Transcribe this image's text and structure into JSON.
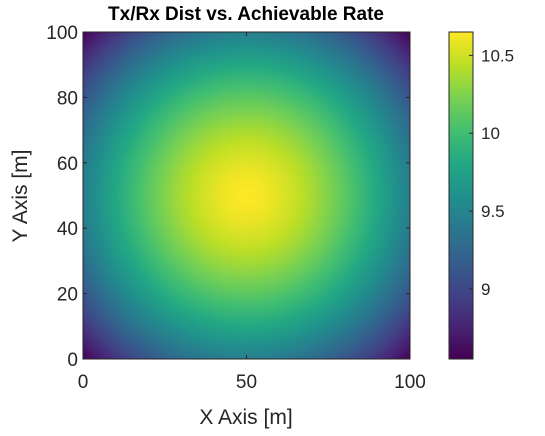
{
  "chart_data": {
    "type": "heatmap",
    "title": "Tx/Rx Dist vs. Achievable Rate",
    "xlabel": "X Axis [m]",
    "ylabel": "Y Axis [m]",
    "xlim": [
      0,
      100
    ],
    "ylim": [
      0,
      100
    ],
    "x_ticks": [
      "0",
      "50",
      "100"
    ],
    "y_ticks": [
      "0",
      "20",
      "40",
      "60",
      "80",
      "100"
    ],
    "colormap": "viridis",
    "value_model": "radially symmetric, maximum at the centre (50, 50), decreasing toward the corners",
    "center": [
      50,
      50
    ],
    "max_value": 10.65,
    "min_value": 8.55,
    "grid": false,
    "colorbar": {
      "range": [
        8.55,
        10.65
      ],
      "ticks": [
        "9",
        "9.5",
        "10",
        "10.5"
      ],
      "position": "right"
    }
  }
}
